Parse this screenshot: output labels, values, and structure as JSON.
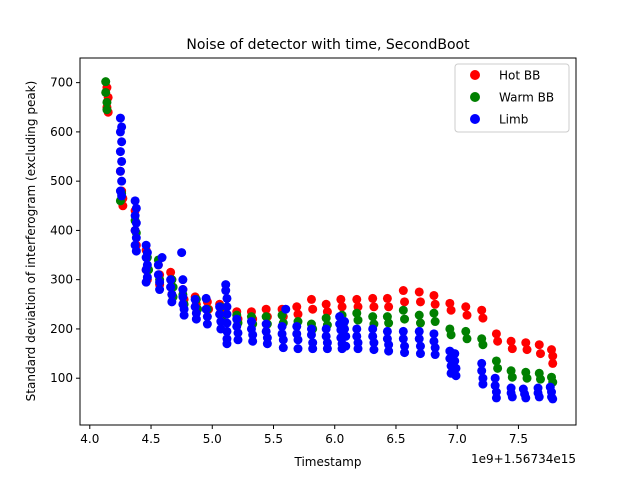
{
  "chart_data": {
    "type": "scatter",
    "title": "Noise of detector with time, SecondBoot",
    "xlabel": "Timestamp",
    "ylabel": "Standard deviation of interferogram (excluding peak)",
    "x_offset_label": "1e9+1.56734e15",
    "xlim": [
      3.92,
      7.97
    ],
    "ylim": [
      5,
      750
    ],
    "x_ticks": [
      4.0,
      4.5,
      5.0,
      5.5,
      6.0,
      6.5,
      7.0,
      7.5
    ],
    "x_tick_labels": [
      "4.0",
      "4.5",
      "5.0",
      "5.5",
      "6.0",
      "6.5",
      "7.0",
      "7.5"
    ],
    "y_ticks": [
      100,
      200,
      300,
      400,
      500,
      600,
      700
    ],
    "y_tick_labels": [
      "100",
      "200",
      "300",
      "400",
      "500",
      "600",
      "700"
    ],
    "grid": false,
    "legend_position": "top-right",
    "series": [
      {
        "name": "Hot BB",
        "color": "#ff0000",
        "points": [
          [
            4.14,
            690
          ],
          [
            4.14,
            650
          ],
          [
            4.15,
            670
          ],
          [
            4.15,
            640
          ],
          [
            4.25,
            520
          ],
          [
            4.26,
            480
          ],
          [
            4.27,
            450
          ],
          [
            4.27,
            465
          ],
          [
            4.37,
            440
          ],
          [
            4.37,
            400
          ],
          [
            4.38,
            370
          ],
          [
            4.46,
            360
          ],
          [
            4.46,
            320
          ],
          [
            4.47,
            300
          ],
          [
            4.56,
            330
          ],
          [
            4.57,
            310
          ],
          [
            4.57,
            290
          ],
          [
            4.66,
            315
          ],
          [
            4.67,
            300
          ],
          [
            4.67,
            270
          ],
          [
            4.76,
            280
          ],
          [
            4.77,
            260
          ],
          [
            4.86,
            265
          ],
          [
            4.87,
            250
          ],
          [
            4.96,
            255
          ],
          [
            4.97,
            240
          ],
          [
            5.06,
            250
          ],
          [
            5.07,
            235
          ],
          [
            5.2,
            235
          ],
          [
            5.21,
            220
          ],
          [
            5.32,
            235
          ],
          [
            5.33,
            220
          ],
          [
            5.44,
            240
          ],
          [
            5.45,
            225
          ],
          [
            5.57,
            240
          ],
          [
            5.58,
            225
          ],
          [
            5.69,
            245
          ],
          [
            5.7,
            230
          ],
          [
            5.81,
            260
          ],
          [
            5.82,
            240
          ],
          [
            5.93,
            250
          ],
          [
            5.94,
            235
          ],
          [
            6.05,
            260
          ],
          [
            6.06,
            245
          ],
          [
            6.18,
            260
          ],
          [
            6.19,
            245
          ],
          [
            6.31,
            262
          ],
          [
            6.32,
            245
          ],
          [
            6.43,
            262
          ],
          [
            6.44,
            245
          ],
          [
            6.56,
            278
          ],
          [
            6.57,
            255
          ],
          [
            6.69,
            275
          ],
          [
            6.7,
            255
          ],
          [
            6.81,
            268
          ],
          [
            6.82,
            250
          ],
          [
            6.94,
            252
          ],
          [
            6.95,
            238
          ],
          [
            7.07,
            245
          ],
          [
            7.08,
            228
          ],
          [
            7.2,
            238
          ],
          [
            7.21,
            222
          ],
          [
            7.32,
            190
          ],
          [
            7.33,
            175
          ],
          [
            7.44,
            175
          ],
          [
            7.45,
            160
          ],
          [
            7.56,
            172
          ],
          [
            7.57,
            158
          ],
          [
            7.67,
            168
          ],
          [
            7.68,
            150
          ],
          [
            7.77,
            158
          ],
          [
            7.78,
            145
          ],
          [
            7.78,
            130
          ]
        ]
      },
      {
        "name": "Warm BB",
        "color": "#008000",
        "points": [
          [
            4.13,
            702
          ],
          [
            4.13,
            680
          ],
          [
            4.14,
            660
          ],
          [
            4.14,
            645
          ],
          [
            4.25,
            460
          ],
          [
            4.26,
            475
          ],
          [
            4.37,
            420
          ],
          [
            4.38,
            395
          ],
          [
            4.47,
            345
          ],
          [
            4.48,
            320
          ],
          [
            4.56,
            340
          ],
          [
            4.57,
            300
          ],
          [
            4.67,
            300
          ],
          [
            4.68,
            285
          ],
          [
            4.68,
            265
          ],
          [
            4.76,
            270
          ],
          [
            4.77,
            250
          ],
          [
            4.87,
            260
          ],
          [
            4.88,
            240
          ],
          [
            4.96,
            240
          ],
          [
            5.07,
            245
          ],
          [
            5.08,
            225
          ],
          [
            5.2,
            228
          ],
          [
            5.21,
            212
          ],
          [
            5.32,
            225
          ],
          [
            5.33,
            210
          ],
          [
            5.44,
            225
          ],
          [
            5.45,
            210
          ],
          [
            5.57,
            228
          ],
          [
            5.58,
            212
          ],
          [
            5.7,
            215
          ],
          [
            5.81,
            210
          ],
          [
            5.82,
            200
          ],
          [
            5.93,
            222
          ],
          [
            5.94,
            208
          ],
          [
            6.06,
            228
          ],
          [
            6.07,
            210
          ],
          [
            6.18,
            232
          ],
          [
            6.19,
            218
          ],
          [
            6.31,
            225
          ],
          [
            6.32,
            210
          ],
          [
            6.43,
            225
          ],
          [
            6.44,
            212
          ],
          [
            6.56,
            238
          ],
          [
            6.57,
            220
          ],
          [
            6.69,
            228
          ],
          [
            6.7,
            212
          ],
          [
            6.81,
            232
          ],
          [
            6.82,
            215
          ],
          [
            6.94,
            200
          ],
          [
            6.95,
            188
          ],
          [
            7.07,
            195
          ],
          [
            7.08,
            180
          ],
          [
            7.2,
            180
          ],
          [
            7.21,
            168
          ],
          [
            7.32,
            135
          ],
          [
            7.33,
            120
          ],
          [
            7.44,
            115
          ],
          [
            7.45,
            102
          ],
          [
            7.56,
            112
          ],
          [
            7.57,
            100
          ],
          [
            7.67,
            110
          ],
          [
            7.68,
            98
          ],
          [
            7.77,
            102
          ],
          [
            7.78,
            92
          ]
        ]
      },
      {
        "name": "Limb",
        "color": "#0000ff",
        "points": [
          [
            4.25,
            628
          ],
          [
            4.25,
            600
          ],
          [
            4.25,
            560
          ],
          [
            4.25,
            520
          ],
          [
            4.25,
            480
          ],
          [
            4.26,
            610
          ],
          [
            4.26,
            580
          ],
          [
            4.26,
            540
          ],
          [
            4.26,
            500
          ],
          [
            4.26,
            470
          ],
          [
            4.37,
            460
          ],
          [
            4.37,
            430
          ],
          [
            4.37,
            400
          ],
          [
            4.37,
            370
          ],
          [
            4.38,
            445
          ],
          [
            4.38,
            415
          ],
          [
            4.38,
            385
          ],
          [
            4.38,
            358
          ],
          [
            4.46,
            370
          ],
          [
            4.46,
            345
          ],
          [
            4.46,
            320
          ],
          [
            4.46,
            295
          ],
          [
            4.47,
            355
          ],
          [
            4.47,
            330
          ],
          [
            4.47,
            305
          ],
          [
            4.56,
            330
          ],
          [
            4.56,
            310
          ],
          [
            4.57,
            295
          ],
          [
            4.57,
            280
          ],
          [
            4.59,
            345
          ],
          [
            4.66,
            300
          ],
          [
            4.66,
            285
          ],
          [
            4.67,
            270
          ],
          [
            4.67,
            255
          ],
          [
            4.75,
            355
          ],
          [
            4.76,
            300
          ],
          [
            4.76,
            280
          ],
          [
            4.76,
            265
          ],
          [
            4.76,
            250
          ],
          [
            4.77,
            240
          ],
          [
            4.77,
            228
          ],
          [
            4.86,
            260
          ],
          [
            4.86,
            245
          ],
          [
            4.87,
            232
          ],
          [
            4.87,
            220
          ],
          [
            4.95,
            262
          ],
          [
            4.95,
            240
          ],
          [
            4.96,
            225
          ],
          [
            4.96,
            210
          ],
          [
            5.06,
            245
          ],
          [
            5.06,
            230
          ],
          [
            5.07,
            215
          ],
          [
            5.07,
            200
          ],
          [
            5.11,
            290
          ],
          [
            5.11,
            278
          ],
          [
            5.12,
            262
          ],
          [
            5.12,
            245
          ],
          [
            5.12,
            230
          ],
          [
            5.12,
            212
          ],
          [
            5.12,
            195
          ],
          [
            5.12,
            180
          ],
          [
            5.12,
            170
          ],
          [
            5.2,
            220
          ],
          [
            5.2,
            205
          ],
          [
            5.21,
            192
          ],
          [
            5.21,
            178
          ],
          [
            5.32,
            215
          ],
          [
            5.32,
            200
          ],
          [
            5.33,
            188
          ],
          [
            5.33,
            175
          ],
          [
            5.44,
            210
          ],
          [
            5.44,
            195
          ],
          [
            5.45,
            182
          ],
          [
            5.45,
            170
          ],
          [
            5.57,
            205
          ],
          [
            5.57,
            190
          ],
          [
            5.58,
            178
          ],
          [
            5.58,
            162
          ],
          [
            5.6,
            240
          ],
          [
            5.69,
            205
          ],
          [
            5.69,
            190
          ],
          [
            5.7,
            178
          ],
          [
            5.7,
            160
          ],
          [
            5.81,
            200
          ],
          [
            5.81,
            188
          ],
          [
            5.82,
            172
          ],
          [
            5.82,
            160
          ],
          [
            5.93,
            200
          ],
          [
            5.93,
            185
          ],
          [
            5.94,
            172
          ],
          [
            5.94,
            160
          ],
          [
            6.04,
            225
          ],
          [
            6.04,
            210
          ],
          [
            6.05,
            198
          ],
          [
            6.05,
            182
          ],
          [
            6.06,
            170
          ],
          [
            6.06,
            160
          ],
          [
            6.08,
            215
          ],
          [
            6.08,
            200
          ],
          [
            6.09,
            185
          ],
          [
            6.09,
            165
          ],
          [
            6.18,
            200
          ],
          [
            6.18,
            185
          ],
          [
            6.19,
            172
          ],
          [
            6.19,
            160
          ],
          [
            6.31,
            200
          ],
          [
            6.31,
            185
          ],
          [
            6.32,
            172
          ],
          [
            6.32,
            158
          ],
          [
            6.43,
            195
          ],
          [
            6.43,
            180
          ],
          [
            6.44,
            168
          ],
          [
            6.44,
            155
          ],
          [
            6.56,
            195
          ],
          [
            6.56,
            180
          ],
          [
            6.57,
            165
          ],
          [
            6.57,
            152
          ],
          [
            6.69,
            195
          ],
          [
            6.69,
            180
          ],
          [
            6.7,
            165
          ],
          [
            6.7,
            150
          ],
          [
            6.81,
            190
          ],
          [
            6.81,
            175
          ],
          [
            6.82,
            162
          ],
          [
            6.82,
            148
          ],
          [
            6.94,
            155
          ],
          [
            6.94,
            140
          ],
          [
            6.95,
            125
          ],
          [
            6.95,
            110
          ],
          [
            6.98,
            150
          ],
          [
            6.98,
            135
          ],
          [
            6.99,
            120
          ],
          [
            6.99,
            105
          ],
          [
            7.2,
            130
          ],
          [
            7.2,
            115
          ],
          [
            7.21,
            100
          ],
          [
            7.21,
            88
          ],
          [
            7.31,
            100
          ],
          [
            7.31,
            85
          ],
          [
            7.32,
            72
          ],
          [
            7.32,
            60
          ],
          [
            7.44,
            80
          ],
          [
            7.44,
            70
          ],
          [
            7.45,
            62
          ],
          [
            7.54,
            78
          ],
          [
            7.55,
            68
          ],
          [
            7.56,
            60
          ],
          [
            7.66,
            80
          ],
          [
            7.66,
            70
          ],
          [
            7.67,
            62
          ],
          [
            7.76,
            82
          ],
          [
            7.77,
            72
          ],
          [
            7.77,
            62
          ],
          [
            7.78,
            58
          ]
        ]
      }
    ]
  }
}
